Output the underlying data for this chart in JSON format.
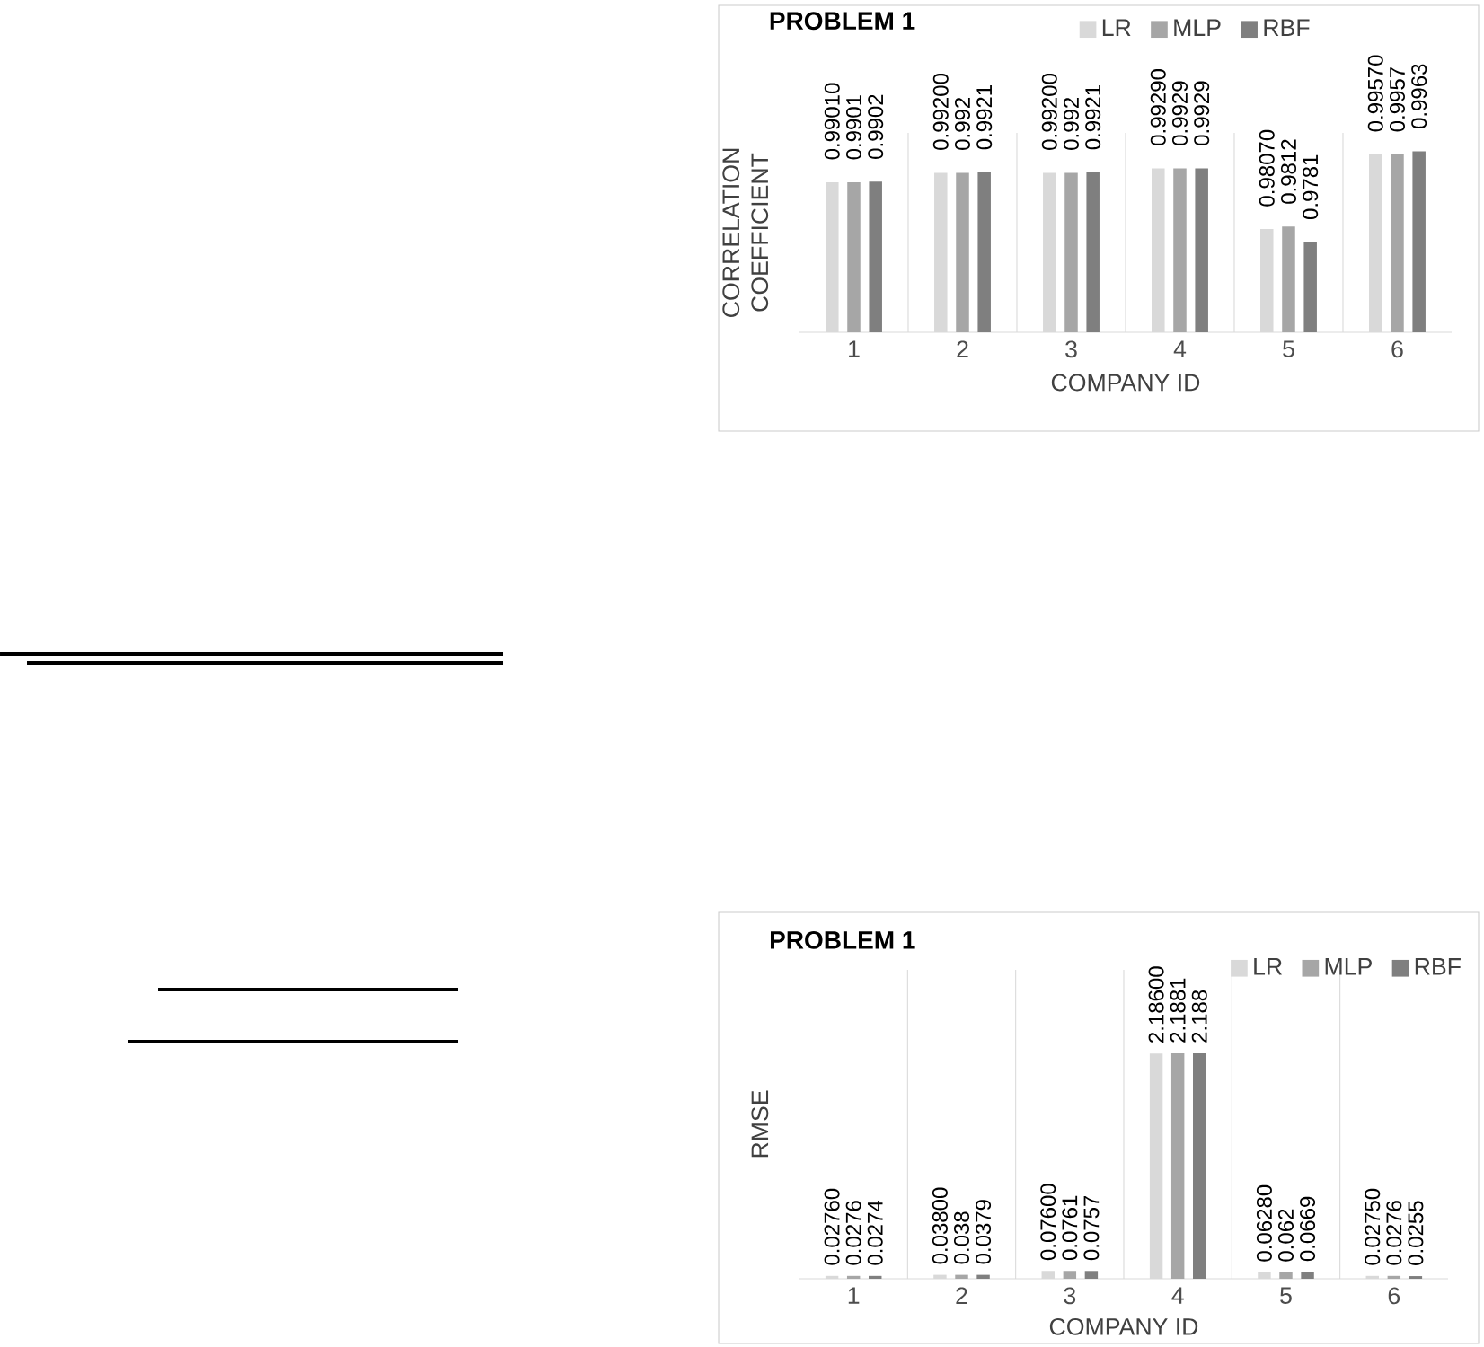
{
  "chart_data": [
    {
      "type": "bar",
      "title": "PROBLEM 1",
      "xlabel": "COMPANY ID",
      "ylabel": "CORRELATION COEFFICIENT",
      "categories": [
        "1",
        "2",
        "3",
        "4",
        "5",
        "6"
      ],
      "ylim": [
        0.96,
        1.0
      ],
      "tick_labels": "x",
      "grid": "x",
      "legend": "top",
      "series": [
        {
          "name": "LR",
          "color": "#d9d9d9",
          "values": [
            0.9901,
            0.992,
            0.992,
            0.9929,
            0.9807,
            0.9957
          ],
          "value_labels": [
            "0.99010",
            "0.99200",
            "0.99200",
            "0.99290",
            "0.98070",
            "0.99570"
          ]
        },
        {
          "name": "MLP",
          "color": "#a6a6a6",
          "values": [
            0.9901,
            0.992,
            0.992,
            0.9929,
            0.9812,
            0.9957
          ],
          "value_labels": [
            "0.9901",
            "0.992",
            "0.992",
            "0.9929",
            "0.9812",
            "0.9957"
          ]
        },
        {
          "name": "RBF",
          "color": "#7f7f7f",
          "values": [
            0.9902,
            0.9921,
            0.9921,
            0.9929,
            0.9781,
            0.9963
          ],
          "value_labels": [
            "0.9902",
            "0.9921",
            "0.9921",
            "0.9929",
            "0.9781",
            "0.9963"
          ]
        }
      ]
    },
    {
      "type": "bar",
      "title": "PROBLEM 1",
      "xlabel": "COMPANY ID",
      "ylabel": "RMSE",
      "categories": [
        "1",
        "2",
        "3",
        "4",
        "5",
        "6"
      ],
      "ylim": [
        0,
        3
      ],
      "tick_labels": "x",
      "grid": "x",
      "legend": "top right",
      "series": [
        {
          "name": "LR",
          "color": "#d9d9d9",
          "values": [
            0.0276,
            0.038,
            0.076,
            2.186,
            0.0628,
            0.0275
          ],
          "value_labels": [
            "0.02760",
            "0.03800",
            "0.07600",
            "2.18600",
            "0.06280",
            "0.02750"
          ]
        },
        {
          "name": "MLP",
          "color": "#a6a6a6",
          "values": [
            0.0276,
            0.038,
            0.0761,
            2.1881,
            0.062,
            0.0276
          ],
          "value_labels": [
            "0.0276",
            "0.038",
            "0.0761",
            "2.1881",
            "0.062",
            "0.0276"
          ]
        },
        {
          "name": "RBF",
          "color": "#7f7f7f",
          "values": [
            0.0274,
            0.0379,
            0.0757,
            2.188,
            0.0669,
            0.0255
          ],
          "value_labels": [
            "0.0274",
            "0.0379",
            "0.0757",
            "2.188",
            "0.0669",
            "0.0255"
          ]
        }
      ]
    }
  ]
}
